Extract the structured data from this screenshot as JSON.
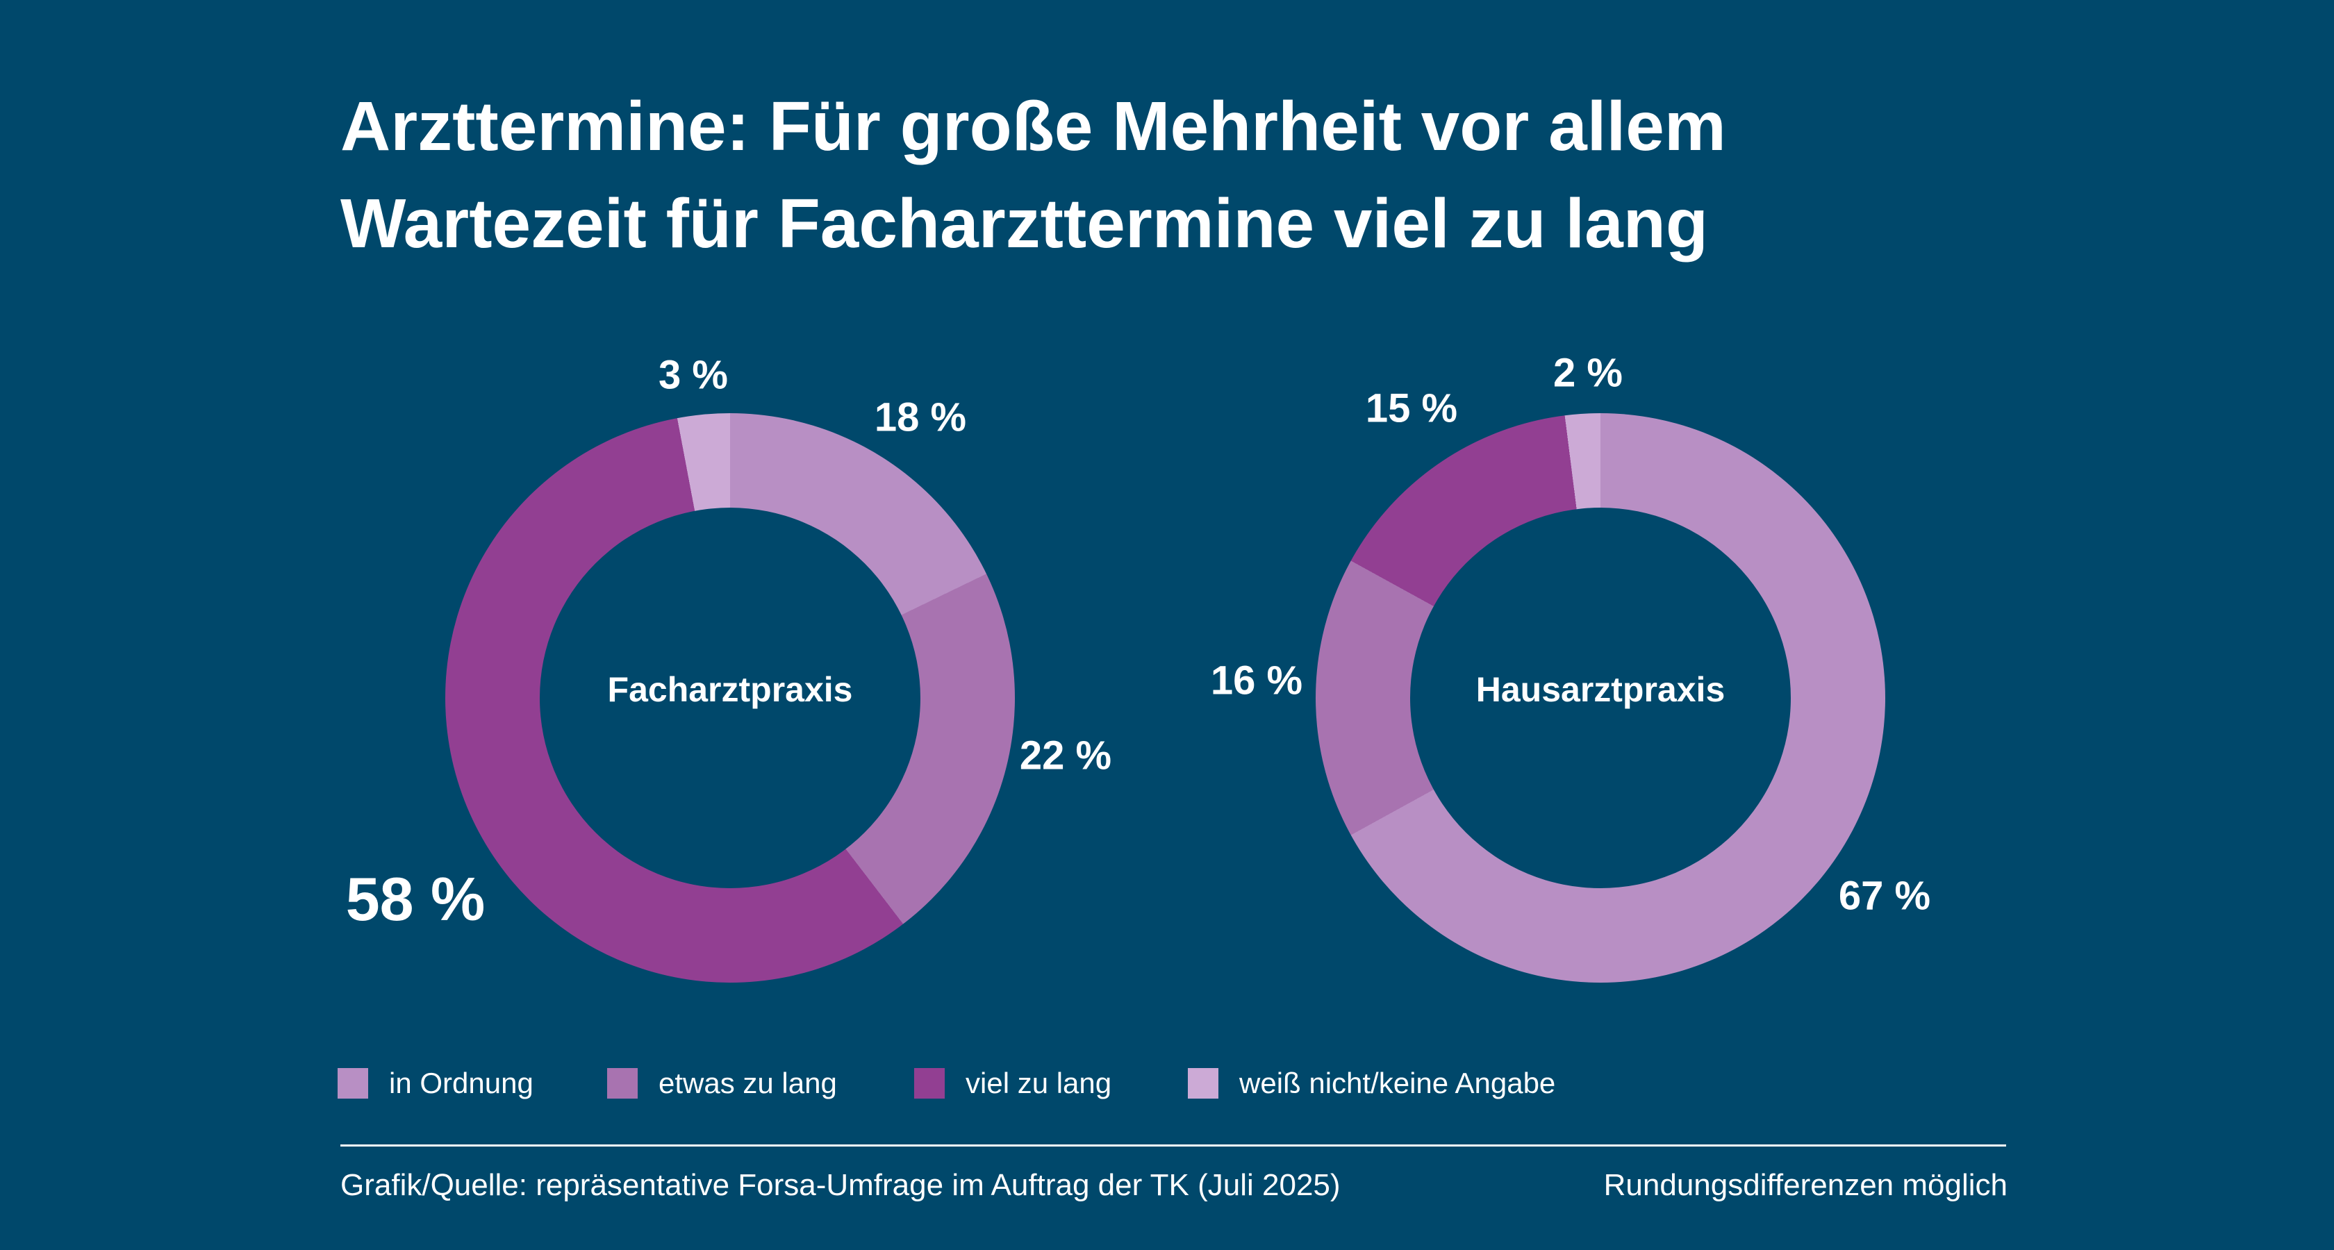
{
  "title": {
    "line1": "Arzttermine: Für große Mehrheit vor allem",
    "line2": "Wartezeit für Facharzttermine viel zu lang"
  },
  "colors": {
    "background": "#00486B",
    "text": "#FFFFFF",
    "in_ordnung": "#B88FC4",
    "etwas_zu_lang": "#A873B0",
    "viel_zu_lang": "#923F92",
    "weiss_nicht": "#CCAAD6"
  },
  "chart_data": {
    "type": "pie",
    "subtype": "donut",
    "unit": "percent",
    "legend_position": "bottom",
    "categories": [
      "in Ordnung",
      "etwas zu lang",
      "viel zu lang",
      "weiß nicht/keine Angabe"
    ],
    "charts": [
      {
        "center_label": "Facharztpraxis",
        "values": [
          18,
          22,
          58,
          3
        ],
        "segment_labels": [
          "18 %",
          "22 %",
          "58 %",
          "3 %"
        ],
        "emphasized_segment": "58 %"
      },
      {
        "center_label": "Hausarztpraxis",
        "values": [
          67,
          16,
          15,
          2
        ],
        "segment_labels": [
          "67 %",
          "16 %",
          "15 %",
          "2 %"
        ]
      }
    ],
    "start_angle_deg": 0,
    "direction": "clockwise"
  },
  "legend": {
    "items": [
      {
        "label": "in Ordnung",
        "color": "#B88FC4"
      },
      {
        "label": "etwas zu lang",
        "color": "#A873B0"
      },
      {
        "label": "viel zu lang",
        "color": "#923F92"
      },
      {
        "label": "weiß nicht/keine Angabe",
        "color": "#CCAAD6"
      }
    ]
  },
  "footer": {
    "source": "Grafik/Quelle: repräsentative Forsa-Umfrage im Auftrag der TK (Juli 2025)",
    "note": "Rundungsdifferenzen möglich"
  }
}
